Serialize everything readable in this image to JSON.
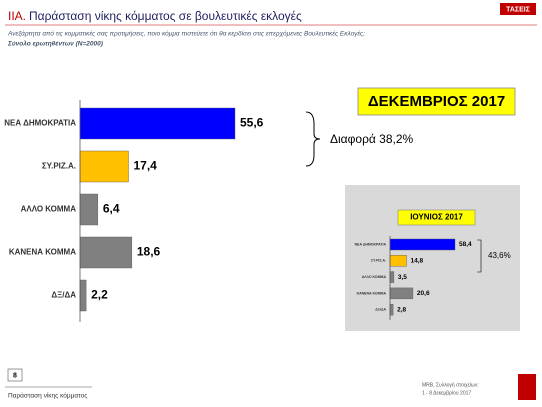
{
  "header": {
    "title_prefix": "IIA.",
    "title": "Παράσταση νίκης κόμματος σε βουλευτικές εκλογές",
    "subtitle": "Ανεξάρτητα από τις κομματικές σας προτιμήσεις, ποιο κόμμα πιστεύετε ότι θα κερδίσει στις επερχόμενες Βουλευτικές Εκλογές;",
    "base": "Σύνολο ερωτηθέντων (Ν=2000)",
    "logo": "ΤΑΣΕΙΣ"
  },
  "chart_data": [
    {
      "type": "bar",
      "orientation": "horizontal",
      "title": "ΔΕΚΕΜΒΡΙΟΣ 2017",
      "annotation": "Διαφορά 38,2%",
      "categories": [
        "ΝΕΑ ΔΗΜΟΚΡΑΤΙΑ",
        "ΣΥ.ΡΙΖ.Α.",
        "ΑΛΛΟ ΚΟΜΜΑ",
        "ΚΑΝΕΝΑ ΚΟΜΜΑ",
        "ΔΞ/ΔΑ"
      ],
      "values": [
        55.6,
        17.4,
        6.4,
        18.6,
        2.2
      ],
      "value_labels": [
        "55,6",
        "17,4",
        "6,4",
        "18,6",
        "2,2"
      ],
      "colors": [
        "#0000ff",
        "#ffc000",
        "#808080",
        "#808080",
        "#808080"
      ]
    },
    {
      "type": "bar",
      "orientation": "horizontal",
      "title": "ΙΟΥΝΙΟΣ 2017",
      "annotation": "43,6%",
      "categories": [
        "ΝΕΑ ΔΗΜΟΚΡΑΤΙΑ",
        "ΣΥ.ΡΙΖ.Α.",
        "ΑΛΛΟ ΚΟΜΜΑ",
        "ΚΑΝΕΝΑ ΚΟΜΜΑ",
        "ΔΞ/ΔΑ"
      ],
      "values": [
        58.4,
        14.8,
        3.5,
        20.6,
        2.8
      ],
      "value_labels": [
        "58,4",
        "14,8",
        "3,5",
        "20,6",
        "2,8"
      ],
      "colors": [
        "#0000ff",
        "#ffc000",
        "#808080",
        "#808080",
        "#808080"
      ]
    }
  ],
  "footer": {
    "page": "8",
    "section": "Παράσταση νίκης κόμματος",
    "source": "MRB, Συλλογή στοιχείων:",
    "dates": "1 - 8 Δεκεμβρίου 2017"
  }
}
